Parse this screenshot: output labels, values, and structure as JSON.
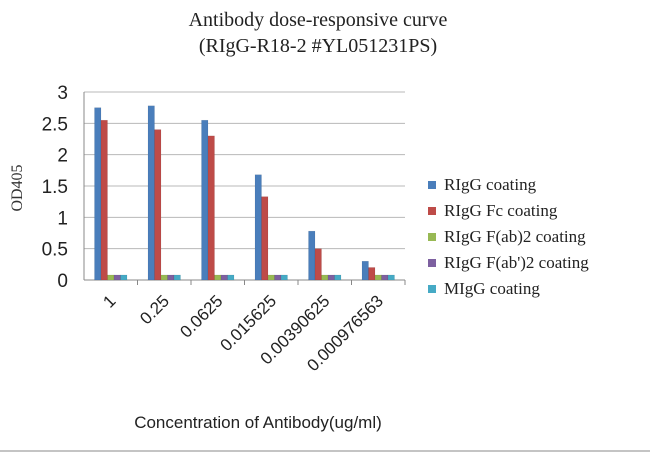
{
  "chart_data": {
    "type": "bar",
    "title": [
      "Antibody dose-responsive curve",
      "(RIgG-R18-2 #YL051231PS)"
    ],
    "xlabel": "Concentration  of Antibody(ug/ml)",
    "ylabel": "OD405",
    "ylim": [
      0,
      3
    ],
    "yticks": [
      "0",
      "0.5",
      "1",
      "1.5",
      "2",
      "2.5",
      "3"
    ],
    "grid": true,
    "legend_position": "right",
    "categories": [
      "1",
      "0.25",
      "0.0625",
      "0.015625",
      "0.00390625",
      "0.000976563"
    ],
    "series": [
      {
        "name": "RIgG coating",
        "color": "#4a7ebb",
        "values": [
          2.75,
          2.78,
          2.55,
          1.68,
          0.78,
          0.3
        ]
      },
      {
        "name": "RIgG Fc coating",
        "color": "#be4b48",
        "values": [
          2.55,
          2.4,
          2.3,
          1.33,
          0.5,
          0.2
        ]
      },
      {
        "name": "RIgG F(ab)2 coating",
        "color": "#98b954",
        "values": [
          0.08,
          0.08,
          0.08,
          0.08,
          0.08,
          0.08
        ]
      },
      {
        "name": "RIgG F(ab')2 coating",
        "color": "#7d60a0",
        "values": [
          0.08,
          0.08,
          0.08,
          0.08,
          0.08,
          0.08
        ]
      },
      {
        "name": "MIgG coating",
        "color": "#46aac5",
        "values": [
          0.08,
          0.08,
          0.08,
          0.08,
          0.08,
          0.08
        ]
      }
    ]
  }
}
